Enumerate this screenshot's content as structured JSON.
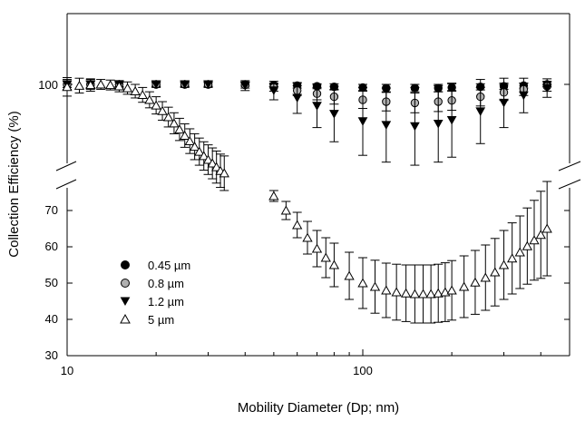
{
  "chart_data": {
    "type": "scatter",
    "title": "",
    "xlabel": "Mobility Diameter (Dp; nm)",
    "ylabel": "Collection Efficiency (%)",
    "x_scale": "log",
    "xlim": [
      10,
      450
    ],
    "ylim_lower": [
      30,
      75
    ],
    "ylim_upper_label": "100",
    "y_axis_break": true,
    "x_ticks": [
      "10",
      "100"
    ],
    "y_ticks_lower": [
      "30",
      "40",
      "50",
      "60",
      "70"
    ],
    "grid": false,
    "legend_position": "lower-left",
    "series": [
      {
        "name": "0.45 µm",
        "marker": "filled-circle",
        "marker_color": "#000000",
        "x": [
          10,
          12,
          15,
          20,
          25,
          30,
          40,
          50,
          60,
          70,
          80,
          100,
          120,
          150,
          180,
          200,
          250,
          300,
          350,
          420
        ],
        "y": [
          100,
          100,
          100,
          100,
          100,
          100,
          100,
          99.9,
          99.8,
          99.7,
          99.6,
          99.5,
          99.4,
          99.4,
          99.4,
          99.5,
          99.6,
          99.7,
          99.8,
          100
        ],
        "err": [
          0.5,
          0.5,
          0.4,
          0.3,
          0.3,
          0.3,
          0.3,
          0.3,
          0.4,
          0.4,
          0.5,
          0.5,
          0.6,
          0.6,
          0.6,
          0.6,
          0.5,
          0.5,
          0.4,
          0.4
        ]
      },
      {
        "name": "0.8 µm",
        "marker": "gray-circle",
        "marker_color": "#b0b0b0",
        "x": [
          10,
          12,
          15,
          20,
          25,
          30,
          40,
          50,
          60,
          70,
          80,
          100,
          120,
          150,
          180,
          200,
          250,
          300,
          350,
          420
        ],
        "y": [
          100,
          100,
          100,
          100,
          100,
          100,
          99.9,
          99.5,
          99.0,
          98.5,
          98.0,
          97.5,
          97.2,
          97.0,
          97.2,
          97.4,
          98.0,
          98.7,
          99.2,
          99.7
        ],
        "err": [
          0.5,
          0.5,
          0.4,
          0.4,
          0.4,
          0.4,
          0.5,
          0.6,
          0.8,
          1.0,
          1.2,
          1.4,
          1.5,
          1.6,
          1.6,
          1.6,
          1.5,
          1.3,
          1.0,
          0.8
        ]
      },
      {
        "name": "1.2 µm",
        "marker": "filled-triangle-down",
        "marker_color": "#000000",
        "x": [
          10,
          12,
          15,
          20,
          25,
          30,
          40,
          50,
          60,
          70,
          80,
          100,
          120,
          150,
          180,
          200,
          250,
          300,
          350,
          420
        ],
        "y": [
          100,
          100,
          100,
          100,
          100,
          100,
          99.8,
          99.0,
          97.8,
          96.5,
          95.2,
          94.0,
          93.4,
          93.2,
          93.6,
          94.2,
          95.6,
          97.0,
          98.2,
          99.4
        ],
        "err": [
          0.8,
          0.8,
          0.6,
          0.5,
          0.5,
          0.5,
          0.8,
          1.5,
          2.5,
          3.5,
          4.5,
          5.5,
          6.0,
          6.3,
          6.2,
          6.0,
          5.2,
          4.0,
          2.8,
          1.5
        ]
      },
      {
        "name": "5 µm",
        "marker": "open-triangle-up",
        "marker_color": "#ffffff",
        "x": [
          10,
          11,
          12,
          13,
          14,
          15,
          16,
          17,
          18,
          19,
          20,
          21,
          22,
          23,
          24,
          25,
          26,
          27,
          28,
          29,
          30,
          31,
          32,
          33,
          34,
          50,
          55,
          60,
          65,
          70,
          75,
          80,
          90,
          100,
          110,
          120,
          130,
          140,
          150,
          160,
          170,
          180,
          190,
          200,
          220,
          240,
          260,
          280,
          300,
          320,
          340,
          360,
          380,
          400,
          420
        ],
        "y": [
          99.6,
          99.8,
          99.9,
          100,
          99.9,
          99.7,
          99.4,
          98.9,
          98.3,
          97.5,
          96.6,
          95.7,
          94.7,
          93.7,
          92.7,
          91.7,
          90.8,
          89.9,
          89.1,
          88.4,
          87.8,
          87.2,
          86.6,
          86.0,
          85.6,
          74,
          70,
          66,
          62.5,
          59.5,
          57,
          55,
          52,
          50,
          49,
          48,
          47.5,
          47.2,
          47,
          47,
          47,
          47.2,
          47.5,
          48,
          49,
          50.2,
          51.5,
          53,
          55,
          56.8,
          58.5,
          60.2,
          61.8,
          63.3,
          65
        ],
        "err": [
          1.5,
          1.2,
          1.0,
          0.8,
          0.8,
          0.9,
          1.0,
          1.1,
          1.2,
          1.3,
          1.4,
          1.5,
          1.6,
          1.7,
          1.8,
          1.9,
          2.0,
          2.1,
          2.2,
          2.3,
          2.4,
          2.5,
          2.6,
          2.7,
          2.8,
          1.5,
          2.5,
          3.5,
          4.5,
          5.0,
          5.5,
          6.0,
          6.5,
          7.0,
          7.3,
          7.5,
          7.7,
          7.8,
          8.0,
          8.0,
          8.0,
          8.0,
          8.1,
          8.2,
          8.5,
          8.8,
          9.0,
          9.3,
          9.5,
          9.8,
          10.0,
          10.5,
          11.0,
          12.0,
          13.0
        ]
      }
    ]
  }
}
